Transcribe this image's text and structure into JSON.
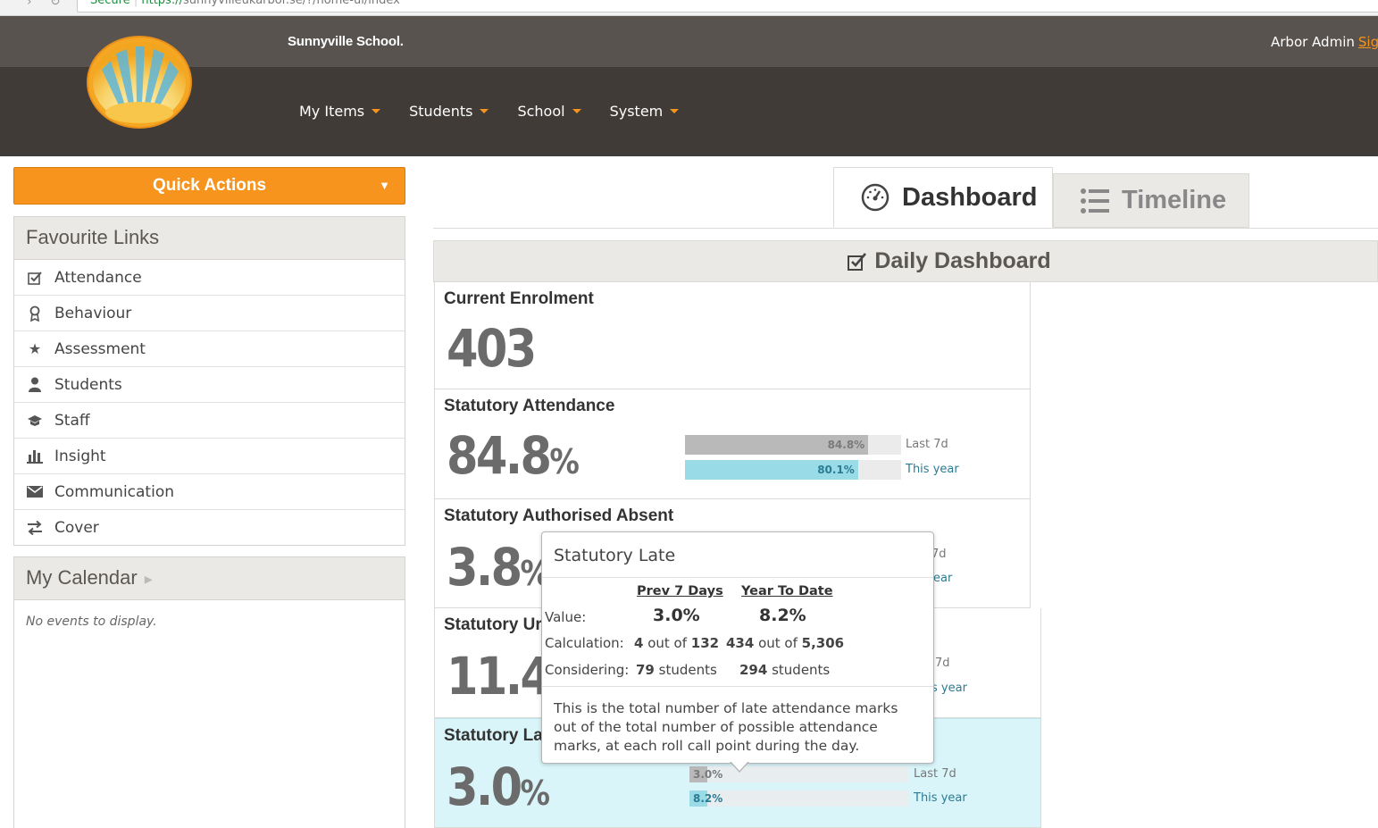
{
  "browser": {
    "secure_label": "Secure",
    "url_scheme": "https://",
    "url_rest": "sunnyvilleukarbor.se/?/home-ui/index"
  },
  "header": {
    "school_name": "Sunnyville School.",
    "user_name": "Arbor Admin",
    "signout_label": "Sig",
    "menu": [
      "My Items",
      "Students",
      "School",
      "System"
    ]
  },
  "sidebar": {
    "quick_actions_label": "Quick Actions",
    "favourites_title": "Favourite Links",
    "favourites": [
      {
        "label": "Attendance",
        "icon": "checkbox-icon"
      },
      {
        "label": "Behaviour",
        "icon": "ribbon-icon"
      },
      {
        "label": "Assessment",
        "icon": "star-icon"
      },
      {
        "label": "Students",
        "icon": "person-icon"
      },
      {
        "label": "Staff",
        "icon": "mortarboard-icon"
      },
      {
        "label": "Insight",
        "icon": "bar-chart-icon"
      },
      {
        "label": "Communication",
        "icon": "envelope-icon"
      },
      {
        "label": "Cover",
        "icon": "swap-arrows-icon"
      }
    ],
    "calendar_title": "My Calendar",
    "calendar_empty": "No events to display."
  },
  "tabs": {
    "dashboard": "Dashboard",
    "timeline": "Timeline"
  },
  "dashboard": {
    "title": "Daily Dashboard",
    "cards": {
      "enrolment": {
        "title": "Current Enrolment",
        "value": "403"
      },
      "attendance": {
        "title": "Statutory Attendance",
        "value": "84.8",
        "unit": "%",
        "last7_value": 84.8,
        "last7_label_text": "84.8%",
        "last7_caption": "Last 7d",
        "year_value": 80.1,
        "year_label_text": "80.1%",
        "year_caption": "This year"
      },
      "authorised": {
        "title": "Statutory Authorised Absent",
        "value": "3.8",
        "unit": "%",
        "last7_caption_partial": "7d",
        "year_caption_partial": "ear"
      },
      "unauthorised": {
        "title": "Statutory Ur",
        "value": "11.4",
        "unit": "",
        "last7_caption_partial": "7d",
        "year_caption_partial": "s year"
      },
      "late": {
        "title": "Statutory La",
        "value": "3.0",
        "unit": "%",
        "last7_value": 3.0,
        "last7_label_text": "3.0%",
        "last7_caption": "Last 7d",
        "year_value": 8.2,
        "year_label_text": "8.2%",
        "year_caption": "This year"
      }
    }
  },
  "tooltip": {
    "title": "Statutory Late",
    "col1_head": "Prev 7 Days",
    "col2_head": "Year To Date",
    "value_label": "Value:",
    "value_col1": "3.0%",
    "value_col2": "8.2%",
    "calc_label": "Calculation:",
    "calc_col1_num": "4",
    "calc_col1_mid": "out of",
    "calc_col1_den": "132",
    "calc_col2_num": "434",
    "calc_col2_mid": "out of",
    "calc_col2_den": "5,306",
    "consider_label": "Considering:",
    "consider_col1_num": "79",
    "consider_col1_unit": "students",
    "consider_col2_num": "294",
    "consider_col2_unit": "students",
    "description": "This is the total number of late attendance marks out of the total number of possible attendance marks, at each roll call point during the day."
  },
  "colors": {
    "brand_orange": "#f7941d",
    "header_top": "#58534e",
    "header_nav": "#403b37",
    "late_highlight": "#d9f5fa",
    "bar_blue": "#99dce8"
  }
}
